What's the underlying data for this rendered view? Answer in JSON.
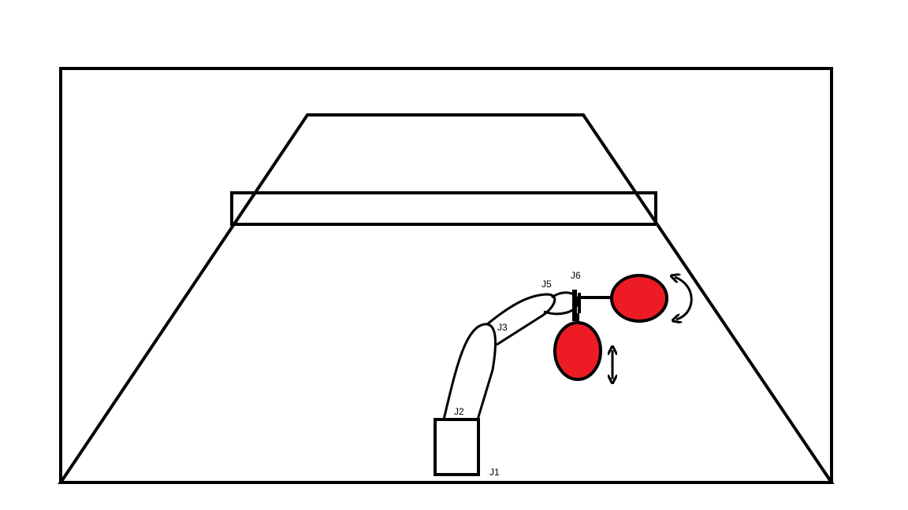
{
  "labels": {
    "j1": "J1",
    "j2": "J2",
    "j3": "J3",
    "j5": "J5",
    "j6": "J6"
  },
  "colors": {
    "line": "#000000",
    "paddle": "#ed1c24",
    "background": "#ffffff"
  },
  "icons": {
    "rotate": "curved-double-arrow-icon",
    "translate": "vertical-double-arrow-icon"
  }
}
